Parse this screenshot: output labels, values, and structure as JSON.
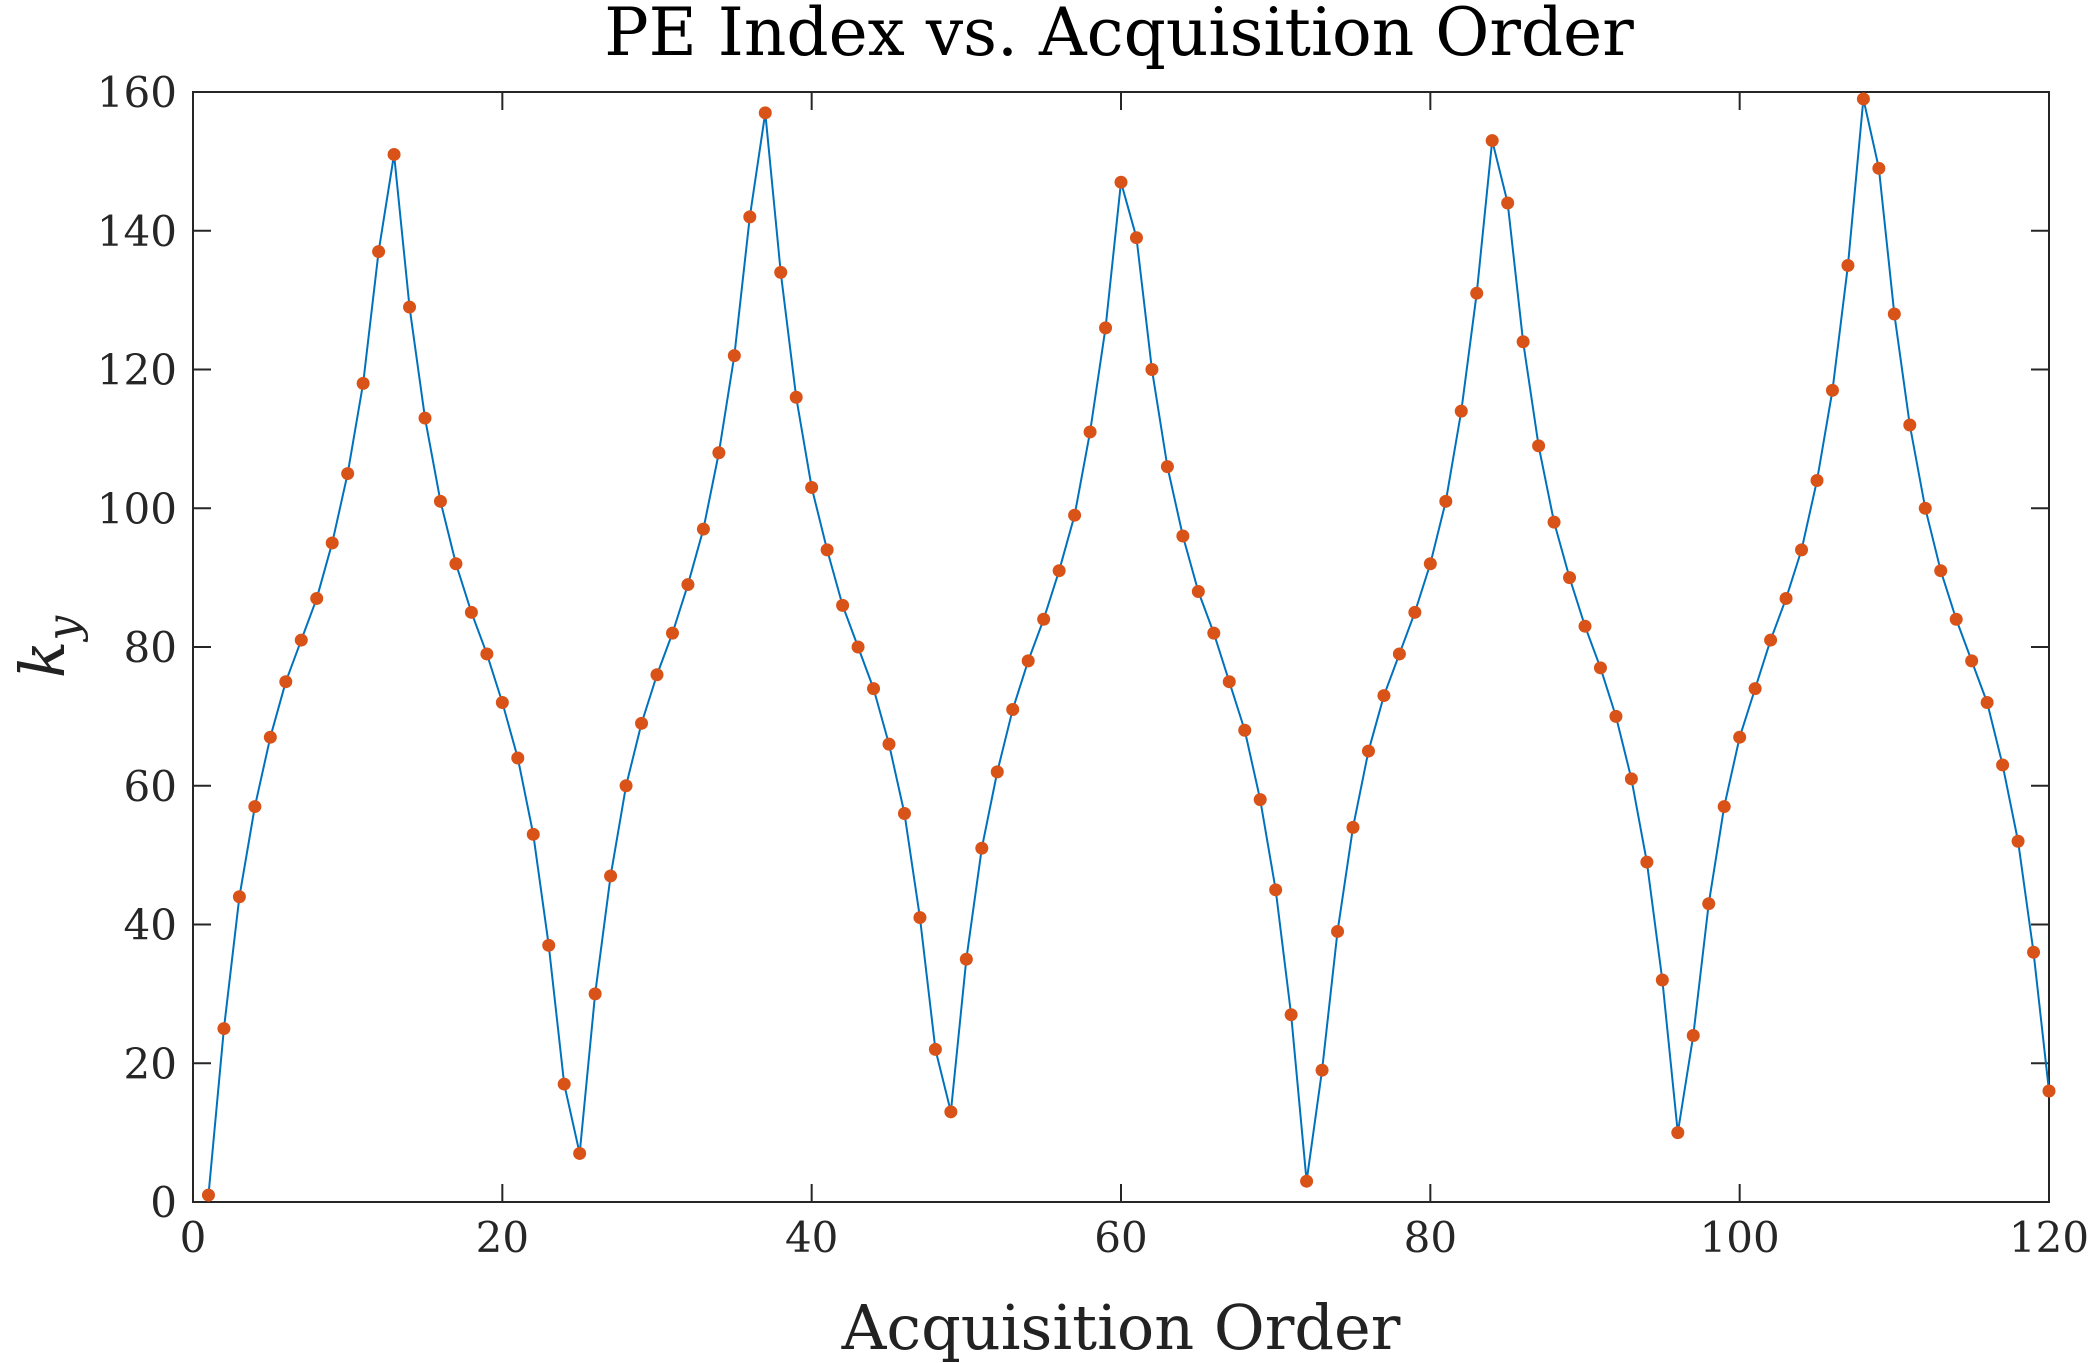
{
  "chart_data": {
    "type": "line",
    "title": "PE Index vs. Acquisition Order",
    "xlabel": "Acquisition Order",
    "ylabel": "k",
    "ylabel_subscript": "y",
    "xlim": [
      0,
      120
    ],
    "ylim": [
      0,
      160
    ],
    "xticks": [
      0,
      20,
      40,
      60,
      80,
      100,
      120
    ],
    "yticks": [
      0,
      20,
      40,
      60,
      80,
      100,
      120,
      140,
      160
    ],
    "grid": false,
    "line_color": "#0072BD",
    "marker_color": "#D95319",
    "series": [
      {
        "x": [
          1,
          2,
          3,
          4,
          5,
          6,
          7,
          8,
          9,
          10,
          11,
          12,
          13,
          14,
          15,
          16,
          17,
          18,
          19,
          20,
          21,
          22,
          23,
          24,
          25,
          26,
          27,
          28,
          29,
          30,
          31,
          32,
          33,
          34,
          35,
          36,
          37,
          38,
          39,
          40,
          41,
          42,
          43,
          44,
          45,
          46,
          47,
          48,
          49,
          50,
          51,
          52,
          53,
          54,
          55,
          56,
          57,
          58,
          59,
          60,
          61,
          62,
          63,
          64,
          65,
          66,
          67,
          68,
          69,
          70,
          71,
          72,
          73,
          74,
          75,
          76,
          77,
          78,
          79,
          80,
          81,
          82,
          83,
          84,
          85,
          86,
          87,
          88,
          89,
          90,
          91,
          92,
          93,
          94,
          95,
          96,
          97,
          98,
          99,
          100,
          101,
          102,
          103,
          104,
          105,
          106,
          107,
          108,
          109,
          110,
          111,
          112,
          113,
          114,
          115,
          116,
          117,
          118,
          119,
          120
        ],
        "values": [
          1,
          25,
          44,
          57,
          67,
          75,
          81,
          87,
          95,
          105,
          118,
          137,
          151,
          129,
          113,
          101,
          92,
          85,
          79,
          72,
          64,
          53,
          37,
          17,
          7,
          30,
          47,
          60,
          69,
          76,
          82,
          89,
          97,
          108,
          122,
          142,
          157,
          134,
          116,
          103,
          94,
          86,
          80,
          74,
          66,
          56,
          41,
          22,
          13,
          35,
          51,
          62,
          71,
          78,
          84,
          91,
          99,
          111,
          126,
          147,
          139,
          120,
          106,
          96,
          88,
          82,
          75,
          68,
          58,
          45,
          27,
          3,
          19,
          39,
          54,
          65,
          73,
          79,
          85,
          92,
          101,
          114,
          131,
          153,
          144,
          124,
          109,
          98,
          90,
          83,
          77,
          70,
          61,
          49,
          32,
          10,
          24,
          43,
          57,
          67,
          74,
          81,
          87,
          94,
          104,
          117,
          135,
          159,
          149,
          128,
          112,
          100,
          91,
          84,
          78,
          72,
          63,
          52,
          36,
          16
        ]
      }
    ]
  }
}
